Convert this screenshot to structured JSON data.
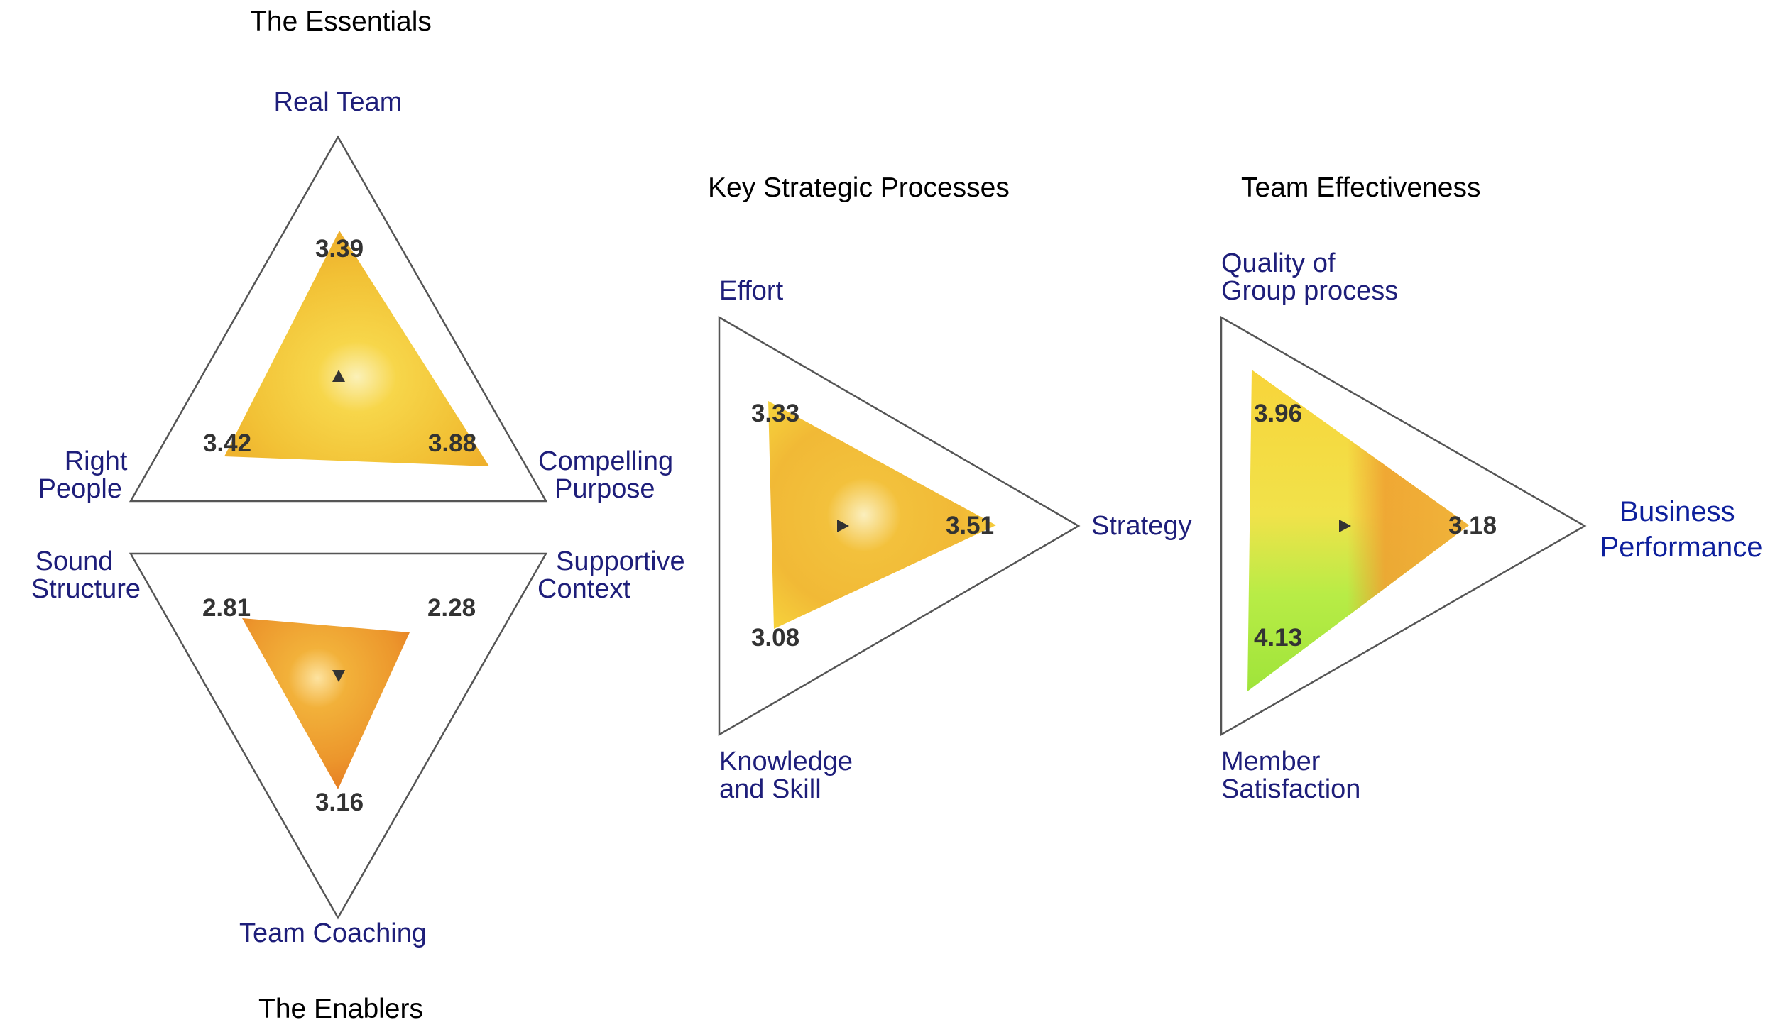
{
  "colors": {
    "frame": "#555555",
    "axis_label": "#1e1e7a",
    "axis_label_emphasis": "#0d1f9c",
    "value_label": "#333333",
    "fill_yellow": "#f3c233",
    "fill_orange": "#e8902a",
    "fill_green": "#a6e640"
  },
  "essentials": {
    "title": "The Essentials",
    "top_label": "Real Team",
    "left_label": [
      "Right",
      "People"
    ],
    "right_label": [
      "Compelling",
      "Purpose"
    ],
    "values": {
      "real_team": "3.39",
      "right_people": "3.42",
      "compelling_purpose": "3.88"
    }
  },
  "enablers": {
    "title": "The Enablers",
    "bottom_label": "Team Coaching",
    "left_label": [
      "Sound",
      "Structure"
    ],
    "right_label": [
      "Supportive",
      "Context"
    ],
    "values": {
      "sound_structure": "2.81",
      "supportive_context": "2.28",
      "team_coaching": "3.16"
    }
  },
  "processes": {
    "title": "Key Strategic Processes",
    "top_label": "Effort",
    "bottom_label": [
      "Knowledge",
      "and Skill"
    ],
    "right_label": "Strategy",
    "values": {
      "effort": "3.33",
      "knowledge_and_skill": "3.08",
      "strategy": "3.51"
    }
  },
  "effectiveness": {
    "title": "Team Effectiveness",
    "top_label": [
      "Quality of",
      "Group process"
    ],
    "bottom_label": [
      "Member",
      "Satisfaction"
    ],
    "right_label": [
      "Business",
      "Performance"
    ],
    "values": {
      "quality_of_group_process": "3.96",
      "member_satisfaction": "4.13",
      "business_performance": "3.18"
    }
  },
  "icons": [
    "up-arrow-marker-icon",
    "down-arrow-marker-icon",
    "right-arrow-marker-icon"
  ]
}
